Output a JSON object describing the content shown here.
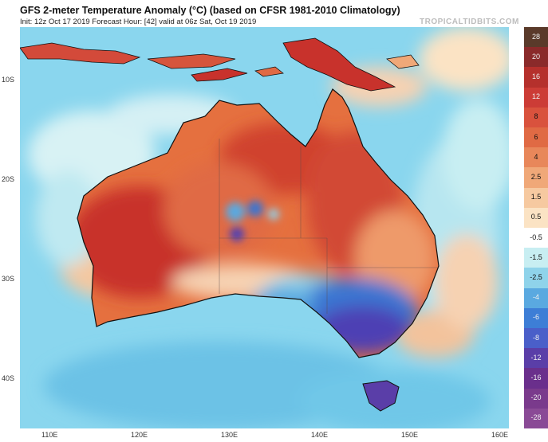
{
  "header": {
    "title": "GFS 2-meter Temperature Anomaly (°C) (based on CFSR 1981-2010 Climatology)",
    "subtitle": "Init: 12z Oct 17 2019   Forecast Hour: [42]   valid at 06z Sat, Oct 19 2019",
    "brand": "TROPICALTIDBITS.COM"
  },
  "axes": {
    "lat_labels": [
      "10S",
      "20S",
      "30S",
      "40S"
    ],
    "lon_labels": [
      "110E",
      "120E",
      "130E",
      "140E",
      "150E",
      "160E"
    ]
  },
  "colorbar": {
    "labels": [
      "28",
      "20",
      "16",
      "12",
      "8",
      "6",
      "4",
      "2.5",
      "1.5",
      "0.5",
      "-0.5",
      "-1.5",
      "-2.5",
      "-4",
      "-6",
      "-8",
      "-12",
      "-16",
      "-20",
      "-28"
    ],
    "colors": [
      "#5a3a2a",
      "#8a2a2a",
      "#b5302c",
      "#cc3c36",
      "#d9523d",
      "#e06a44",
      "#e8875a",
      "#f0a878",
      "#f6c9a0",
      "#fbe3c4",
      "#ffffff",
      "#c8eef2",
      "#8fd3ea",
      "#5aa9e0",
      "#3d7ed6",
      "#4a5fc9",
      "#5a3ea8",
      "#6a2f8c",
      "#7a3a8c",
      "#8a4a96"
    ]
  },
  "colors": {
    "ocean": "#8ad6ee",
    "warm_land": "#e5703f",
    "hot_core": "#c8322c",
    "cool_south": "#3a76d2",
    "cold_core": "#4e3fb4",
    "coastline": "#111111"
  }
}
